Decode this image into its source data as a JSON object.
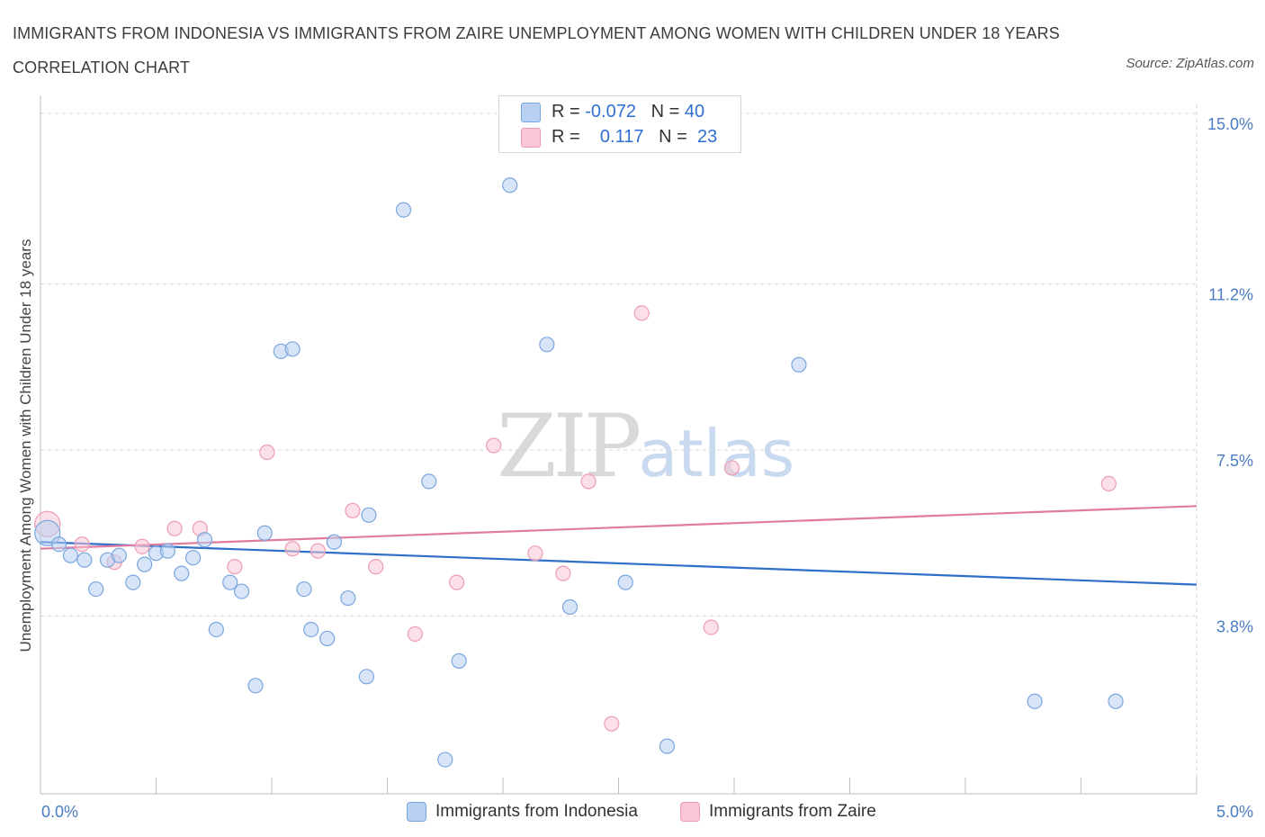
{
  "title": "IMMIGRANTS FROM INDONESIA VS IMMIGRANTS FROM ZAIRE UNEMPLOYMENT AMONG WOMEN WITH CHILDREN UNDER 18 YEARS CORRELATION CHART",
  "source": "Source: ZipAtlas.com",
  "watermark": {
    "zip": "ZIP",
    "atlas": "atlas"
  },
  "legend_top": {
    "rows": [
      {
        "r_label": "R =",
        "r_value": "-0.072",
        "n_label": "N =",
        "n_value": "40"
      },
      {
        "r_label": "R =",
        "r_value": "0.117",
        "n_label": "N =",
        "n_value": "23"
      }
    ]
  },
  "colors": {
    "blue_fill": "#b8d0f2",
    "blue_stroke": "#7aa6de",
    "blue_line": "#2f6fc9",
    "pink_fill": "#f8c6d4",
    "pink_stroke": "#ec9cb4",
    "pink_line": "#e07ca0",
    "grid": "#d9d9d9",
    "axis": "#bdbdbd",
    "tick_text": "#4a7cc4"
  },
  "chart_data": {
    "type": "scatter",
    "title": "IMMIGRANTS FROM INDONESIA VS IMMIGRANTS FROM ZAIRE UNEMPLOYMENT AMONG WOMEN WITH CHILDREN UNDER 18 YEARS CORRELATION CHART",
    "xlabel": "",
    "ylabel": "Unemployment Among Women with Children Under 18 years",
    "xlim": [
      0,
      5
    ],
    "ylim": [
      0,
      15
    ],
    "x_tick_labels": [
      "0.0%",
      "5.0%"
    ],
    "y_ticks": [
      3.8,
      7.5,
      11.2,
      15.0
    ],
    "y_tick_labels": [
      "3.8%",
      "7.5%",
      "11.2%",
      "15.0%"
    ],
    "series": [
      {
        "name": "Immigrants from Indonesia",
        "color": "#b8d0f2",
        "r": -0.072,
        "n": 40,
        "trend": {
          "x": [
            0,
            5
          ],
          "y": [
            5.45,
            4.5
          ]
        },
        "points": [
          [
            0.03,
            5.65
          ],
          [
            0.08,
            5.4
          ],
          [
            0.13,
            5.15
          ],
          [
            0.19,
            5.05
          ],
          [
            0.24,
            4.4
          ],
          [
            0.29,
            5.05
          ],
          [
            0.34,
            5.15
          ],
          [
            0.4,
            4.55
          ],
          [
            0.45,
            4.95
          ],
          [
            0.5,
            5.2
          ],
          [
            0.55,
            5.25
          ],
          [
            0.61,
            4.75
          ],
          [
            0.66,
            5.1
          ],
          [
            0.71,
            5.5
          ],
          [
            0.76,
            3.5
          ],
          [
            0.82,
            4.55
          ],
          [
            0.87,
            4.35
          ],
          [
            0.93,
            2.25
          ],
          [
            0.97,
            5.65
          ],
          [
            1.04,
            9.7
          ],
          [
            1.09,
            9.75
          ],
          [
            1.14,
            4.4
          ],
          [
            1.17,
            3.5
          ],
          [
            1.24,
            3.3
          ],
          [
            1.27,
            5.45
          ],
          [
            1.33,
            4.2
          ],
          [
            1.41,
            2.45
          ],
          [
            1.42,
            6.05
          ],
          [
            1.57,
            12.85
          ],
          [
            1.68,
            6.8
          ],
          [
            1.75,
            0.6
          ],
          [
            1.81,
            2.8
          ],
          [
            2.03,
            13.4
          ],
          [
            2.19,
            9.85
          ],
          [
            2.29,
            4.0
          ],
          [
            2.53,
            4.55
          ],
          [
            2.71,
            0.9
          ],
          [
            3.28,
            9.4
          ],
          [
            4.3,
            1.9
          ],
          [
            4.65,
            1.9
          ]
        ]
      },
      {
        "name": "Immigrants from Zaire",
        "color": "#f8c6d4",
        "r": 0.117,
        "n": 23,
        "trend": {
          "x": [
            0,
            5
          ],
          "y": [
            5.3,
            6.25
          ]
        },
        "points": [
          [
            0.03,
            5.85
          ],
          [
            0.18,
            5.4
          ],
          [
            0.32,
            5.0
          ],
          [
            0.44,
            5.35
          ],
          [
            0.58,
            5.75
          ],
          [
            0.69,
            5.75
          ],
          [
            0.84,
            4.9
          ],
          [
            0.98,
            7.45
          ],
          [
            1.09,
            5.3
          ],
          [
            1.2,
            5.25
          ],
          [
            1.35,
            6.15
          ],
          [
            1.45,
            4.9
          ],
          [
            1.62,
            3.4
          ],
          [
            1.8,
            4.55
          ],
          [
            1.96,
            7.6
          ],
          [
            2.14,
            5.2
          ],
          [
            2.26,
            4.75
          ],
          [
            2.37,
            6.8
          ],
          [
            2.6,
            10.55
          ],
          [
            2.9,
            3.55
          ],
          [
            2.99,
            7.1
          ],
          [
            2.47,
            1.4
          ],
          [
            4.62,
            6.75
          ]
        ]
      }
    ]
  }
}
